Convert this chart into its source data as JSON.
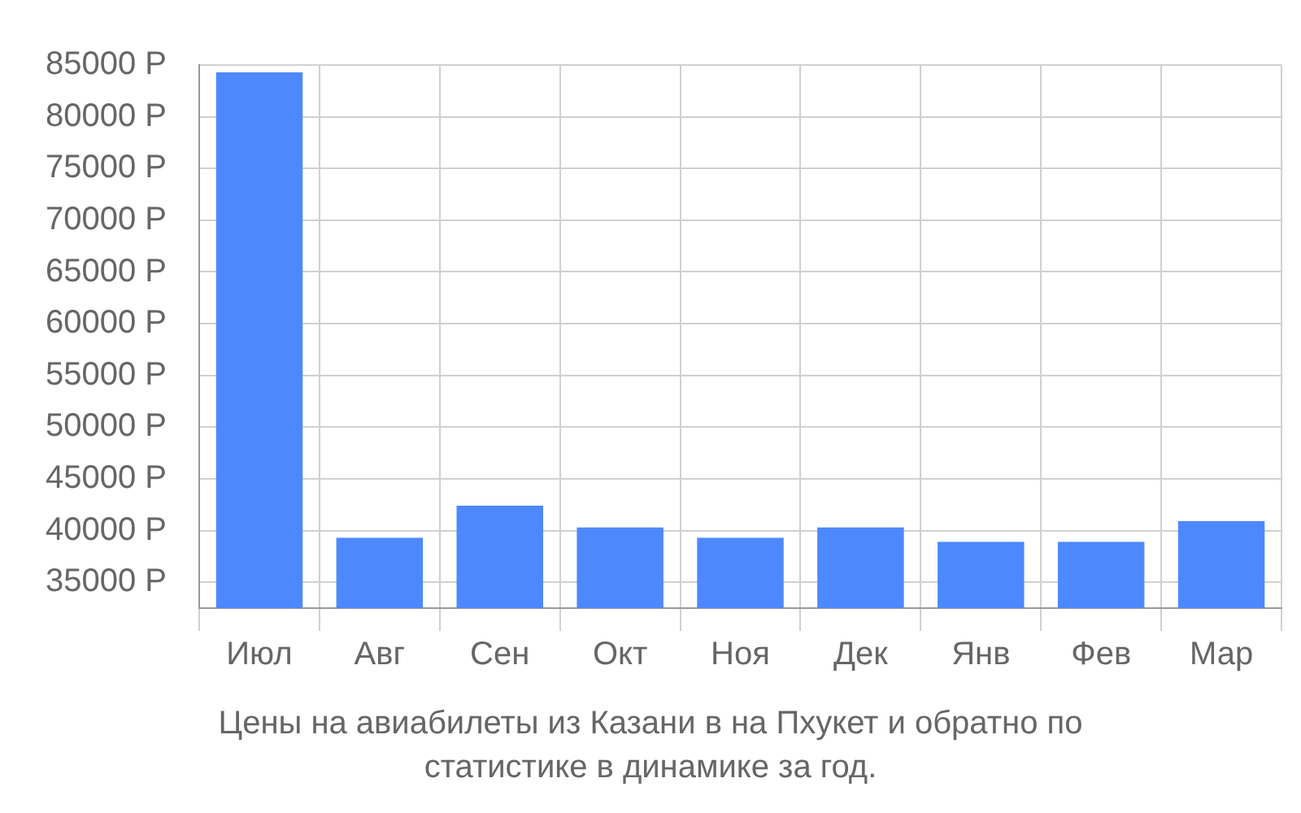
{
  "chart_data": {
    "type": "bar",
    "title": "Цены на авиабилеты из Казани в на Пхукет и обратно по статистике в динамике за год.",
    "categories": [
      "Июл",
      "Авг",
      "Сен",
      "Окт",
      "Ноя",
      "Дек",
      "Янв",
      "Фев",
      "Мар"
    ],
    "values": [
      84300,
      39300,
      42400,
      40300,
      39300,
      40300,
      38900,
      38900,
      40900
    ],
    "color": "#4d88ff",
    "ylim": [
      32500,
      85000
    ],
    "yticks": [
      {
        "value": 35000,
        "label": "35000 Р"
      },
      {
        "value": 40000,
        "label": "40000 Р"
      },
      {
        "value": 45000,
        "label": "45000 Р"
      },
      {
        "value": 50000,
        "label": "50000 Р"
      },
      {
        "value": 55000,
        "label": "55000 Р"
      },
      {
        "value": 60000,
        "label": "60000 Р"
      },
      {
        "value": 65000,
        "label": "65000 Р"
      },
      {
        "value": 70000,
        "label": "70000 Р"
      },
      {
        "value": 75000,
        "label": "75000 Р"
      },
      {
        "value": 80000,
        "label": "80000 Р"
      },
      {
        "value": 85000,
        "label": "85000 Р"
      }
    ],
    "grid": true
  }
}
